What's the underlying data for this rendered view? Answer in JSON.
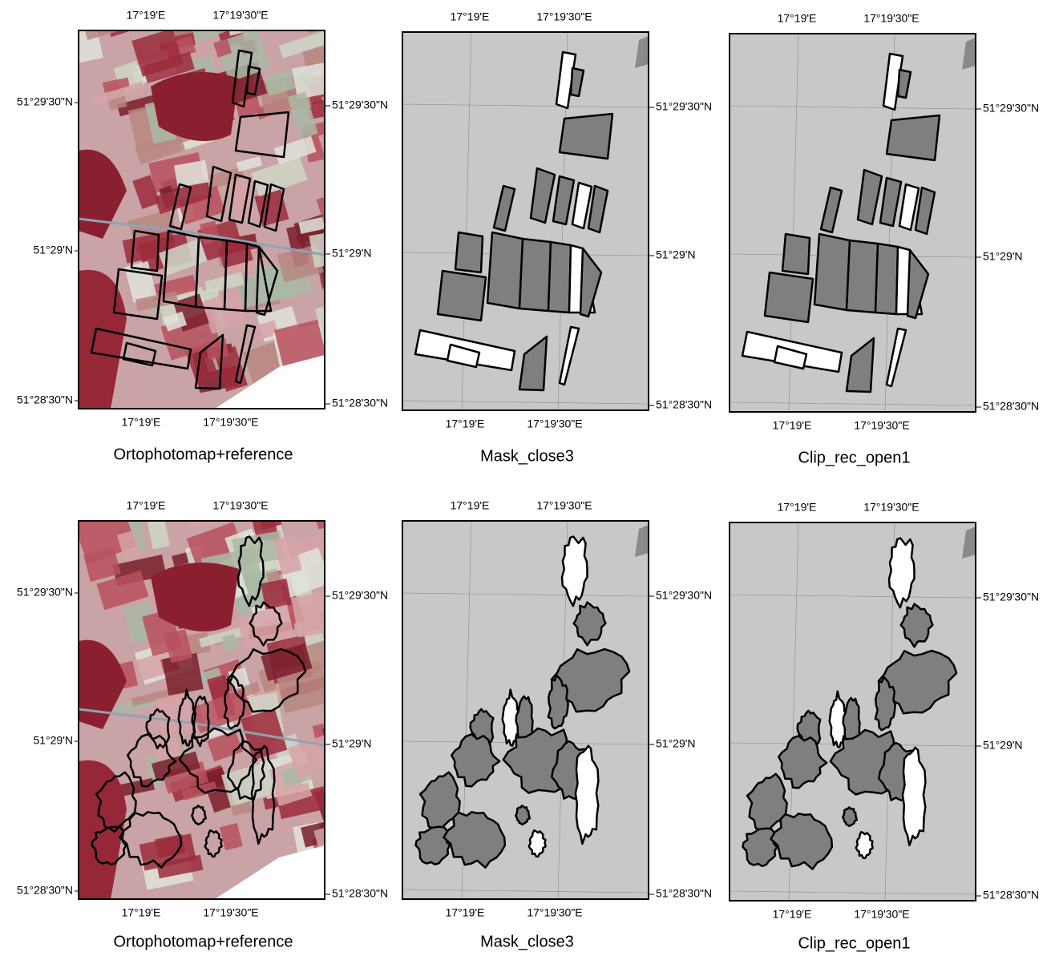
{
  "panels": [
    {
      "caption": "Ortophotomap+reference",
      "top_ticks": [
        "17°19'E",
        "17°19'30\"E"
      ],
      "bottom_ticks": [
        "17°19'E",
        "17°19'30\"E"
      ],
      "left_ticks": [
        "51°29'30\"N",
        "51°29'N",
        "51°28'30\"N"
      ],
      "right_ticks": [
        "51°29'30\"N",
        "51°29'N",
        "51°28'30\"N"
      ]
    },
    {
      "caption": "Mask_close3",
      "top_ticks": [
        "17°19'E",
        "17°19'30\"E"
      ],
      "bottom_ticks": [
        "17°19'E",
        "17°19'30\"E"
      ],
      "right_ticks": [
        "51°29'30\"N",
        "51°29'N",
        "51°28'30\"N"
      ]
    },
    {
      "caption": "Clip_rec_open1",
      "top_ticks": [
        "17°19'E",
        "17°19'30\"E"
      ],
      "bottom_ticks": [
        "17°19'E",
        "17°19'30\"E"
      ],
      "right_ticks": [
        "51°29'30\"N",
        "51°29'N",
        "51°28'30\"N"
      ]
    },
    {
      "caption": "Ortophotomap+reference",
      "top_ticks": [
        "17°19'E",
        "17°19'30\"E"
      ],
      "bottom_ticks": [
        "17°19'E",
        "17°19'30\"E"
      ],
      "left_ticks": [
        "51°29'30\"N",
        "51°29'N",
        "51°28'30\"N"
      ],
      "right_ticks": [
        "51°29'30\"N",
        "51°29'N",
        "51°28'30\"N"
      ]
    },
    {
      "caption": "Mask_close3",
      "top_ticks": [
        "17°19'E",
        "17°19'30\"E"
      ],
      "bottom_ticks": [
        "17°19'E",
        "17°19'30\"E"
      ],
      "right_ticks": [
        "51°29'30\"N",
        "51°29'N",
        "51°28'30\"N"
      ]
    },
    {
      "caption": "Clip_rec_open1",
      "top_ticks": [
        "17°19'E",
        "17°19'30\"E"
      ],
      "bottom_ticks": [
        "17°19'E",
        "17°19'30\"E"
      ],
      "right_ticks": [
        "51°29'30\"N",
        "51°29'N",
        "51°28'30\"N"
      ]
    }
  ]
}
